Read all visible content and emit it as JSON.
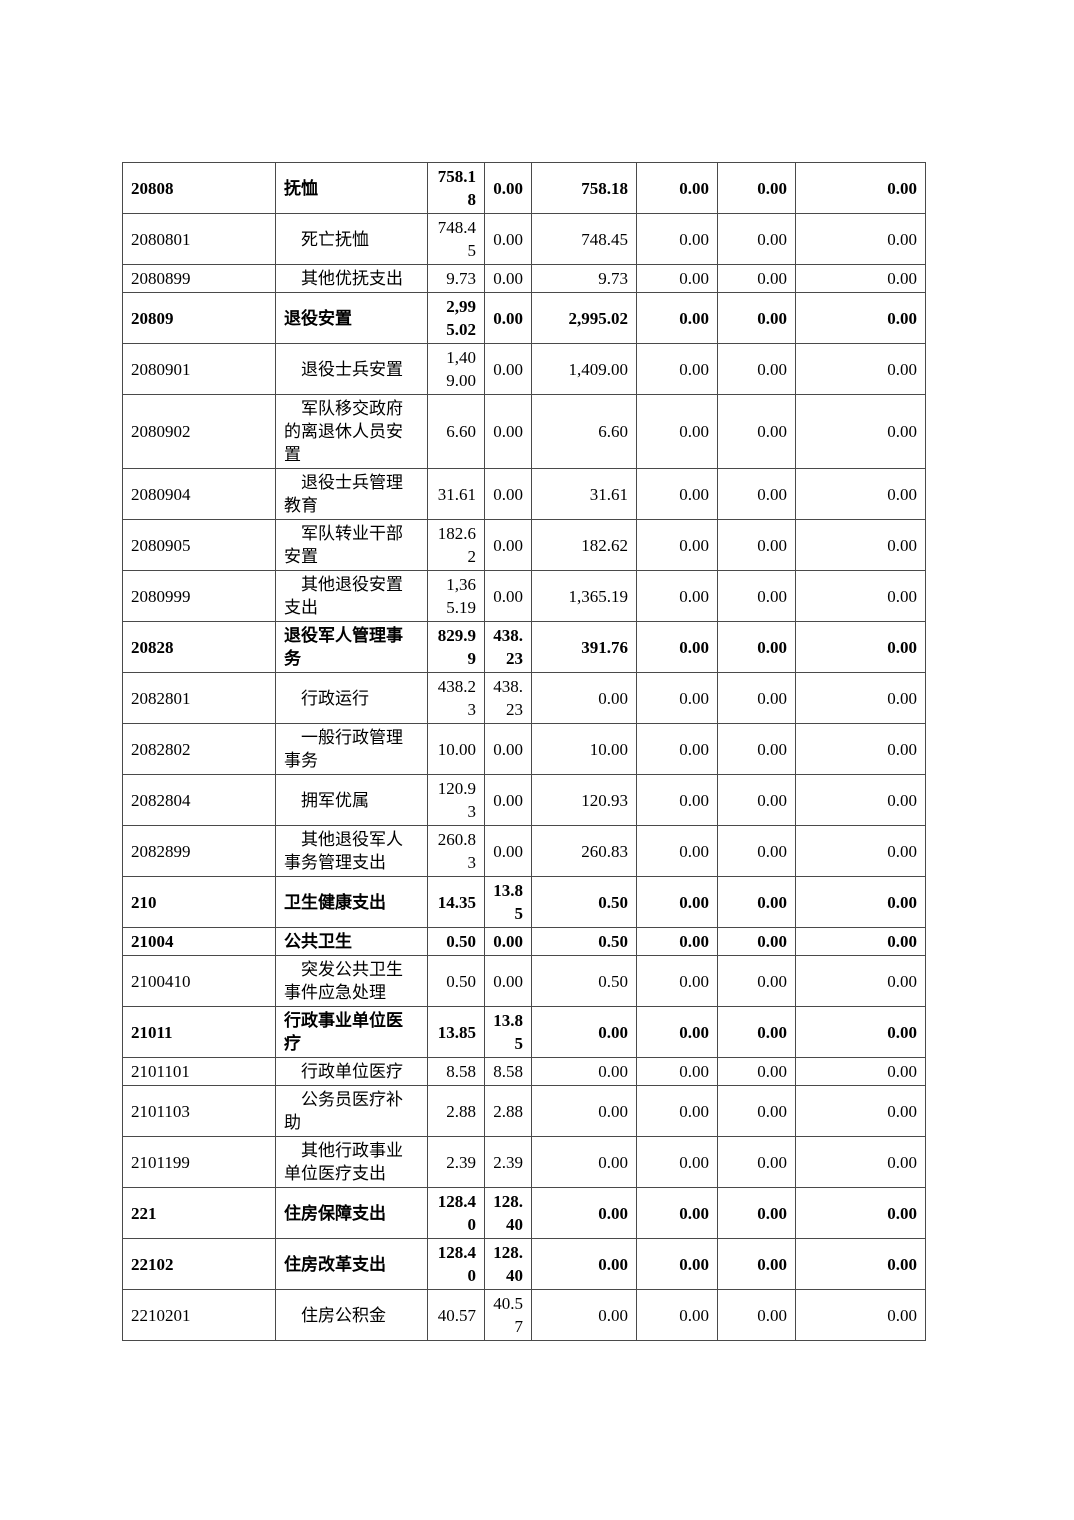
{
  "page": {
    "kind": "government-budget-expenditure-table-continuation",
    "background_color": "#ffffff",
    "text_color": "#000000",
    "border_color": "#4a4a4a"
  },
  "table": {
    "columns": [
      "code",
      "name",
      "value-1",
      "value-2",
      "value-3",
      "value-4",
      "value-5",
      "value-6"
    ],
    "rows": [
      {
        "code": "20808",
        "name": "抚恤",
        "bold": true,
        "indent": false,
        "values": [
          "758.18",
          "0.00",
          "758.18",
          "0.00",
          "0.00",
          "0.00"
        ]
      },
      {
        "code": "2080801",
        "name": "死亡抚恤",
        "bold": false,
        "indent": true,
        "values": [
          "748.45",
          "0.00",
          "748.45",
          "0.00",
          "0.00",
          "0.00"
        ]
      },
      {
        "code": "2080899",
        "name": "其他优抚支出",
        "bold": false,
        "indent": true,
        "values": [
          "9.73",
          "0.00",
          "9.73",
          "0.00",
          "0.00",
          "0.00"
        ]
      },
      {
        "code": "20809",
        "name": "退役安置",
        "bold": true,
        "indent": false,
        "values": [
          "2,995.02",
          "0.00",
          "2,995.02",
          "0.00",
          "0.00",
          "0.00"
        ]
      },
      {
        "code": "2080901",
        "name": "退役士兵安置",
        "bold": false,
        "indent": true,
        "values": [
          "1,409.00",
          "0.00",
          "1,409.00",
          "0.00",
          "0.00",
          "0.00"
        ]
      },
      {
        "code": "2080902",
        "name": "军队移交政府的离退休人员安置",
        "bold": false,
        "indent": true,
        "values": [
          "6.60",
          "0.00",
          "6.60",
          "0.00",
          "0.00",
          "0.00"
        ]
      },
      {
        "code": "2080904",
        "name": "退役士兵管理教育",
        "bold": false,
        "indent": true,
        "values": [
          "31.61",
          "0.00",
          "31.61",
          "0.00",
          "0.00",
          "0.00"
        ]
      },
      {
        "code": "2080905",
        "name": "军队转业干部安置",
        "bold": false,
        "indent": true,
        "values": [
          "182.62",
          "0.00",
          "182.62",
          "0.00",
          "0.00",
          "0.00"
        ]
      },
      {
        "code": "2080999",
        "name": "其他退役安置支出",
        "bold": false,
        "indent": true,
        "values": [
          "1,365.19",
          "0.00",
          "1,365.19",
          "0.00",
          "0.00",
          "0.00"
        ]
      },
      {
        "code": "20828",
        "name": "退役军人管理事务",
        "bold": true,
        "indent": false,
        "values": [
          "829.99",
          "438.23",
          "391.76",
          "0.00",
          "0.00",
          "0.00"
        ]
      },
      {
        "code": "2082801",
        "name": "行政运行",
        "bold": false,
        "indent": true,
        "values": [
          "438.23",
          "438.23",
          "0.00",
          "0.00",
          "0.00",
          "0.00"
        ]
      },
      {
        "code": "2082802",
        "name": "一般行政管理事务",
        "bold": false,
        "indent": true,
        "values": [
          "10.00",
          "0.00",
          "10.00",
          "0.00",
          "0.00",
          "0.00"
        ]
      },
      {
        "code": "2082804",
        "name": "拥军优属",
        "bold": false,
        "indent": true,
        "values": [
          "120.93",
          "0.00",
          "120.93",
          "0.00",
          "0.00",
          "0.00"
        ]
      },
      {
        "code": "2082899",
        "name": "其他退役军人事务管理支出",
        "bold": false,
        "indent": true,
        "values": [
          "260.83",
          "0.00",
          "260.83",
          "0.00",
          "0.00",
          "0.00"
        ]
      },
      {
        "code": "210",
        "name": "卫生健康支出",
        "bold": true,
        "indent": false,
        "values": [
          "14.35",
          "13.85",
          "0.50",
          "0.00",
          "0.00",
          "0.00"
        ]
      },
      {
        "code": "21004",
        "name": "公共卫生",
        "bold": true,
        "indent": false,
        "values": [
          "0.50",
          "0.00",
          "0.50",
          "0.00",
          "0.00",
          "0.00"
        ]
      },
      {
        "code": "2100410",
        "name": "突发公共卫生事件应急处理",
        "bold": false,
        "indent": true,
        "values": [
          "0.50",
          "0.00",
          "0.50",
          "0.00",
          "0.00",
          "0.00"
        ]
      },
      {
        "code": "21011",
        "name": "行政事业单位医疗",
        "bold": true,
        "indent": false,
        "values": [
          "13.85",
          "13.85",
          "0.00",
          "0.00",
          "0.00",
          "0.00"
        ]
      },
      {
        "code": "2101101",
        "name": "行政单位医疗",
        "bold": false,
        "indent": true,
        "values": [
          "8.58",
          "8.58",
          "0.00",
          "0.00",
          "0.00",
          "0.00"
        ]
      },
      {
        "code": "2101103",
        "name": "公务员医疗补助",
        "bold": false,
        "indent": true,
        "values": [
          "2.88",
          "2.88",
          "0.00",
          "0.00",
          "0.00",
          "0.00"
        ]
      },
      {
        "code": "2101199",
        "name": "其他行政事业单位医疗支出",
        "bold": false,
        "indent": true,
        "values": [
          "2.39",
          "2.39",
          "0.00",
          "0.00",
          "0.00",
          "0.00"
        ]
      },
      {
        "code": "221",
        "name": "住房保障支出",
        "bold": true,
        "indent": false,
        "values": [
          "128.40",
          "128.40",
          "0.00",
          "0.00",
          "0.00",
          "0.00"
        ]
      },
      {
        "code": "22102",
        "name": "住房改革支出",
        "bold": true,
        "indent": false,
        "values": [
          "128.40",
          "128.40",
          "0.00",
          "0.00",
          "0.00",
          "0.00"
        ]
      },
      {
        "code": "2210201",
        "name": "住房公积金",
        "bold": false,
        "indent": true,
        "values": [
          "40.57",
          "40.57",
          "0.00",
          "0.00",
          "0.00",
          "0.00"
        ]
      }
    ]
  }
}
